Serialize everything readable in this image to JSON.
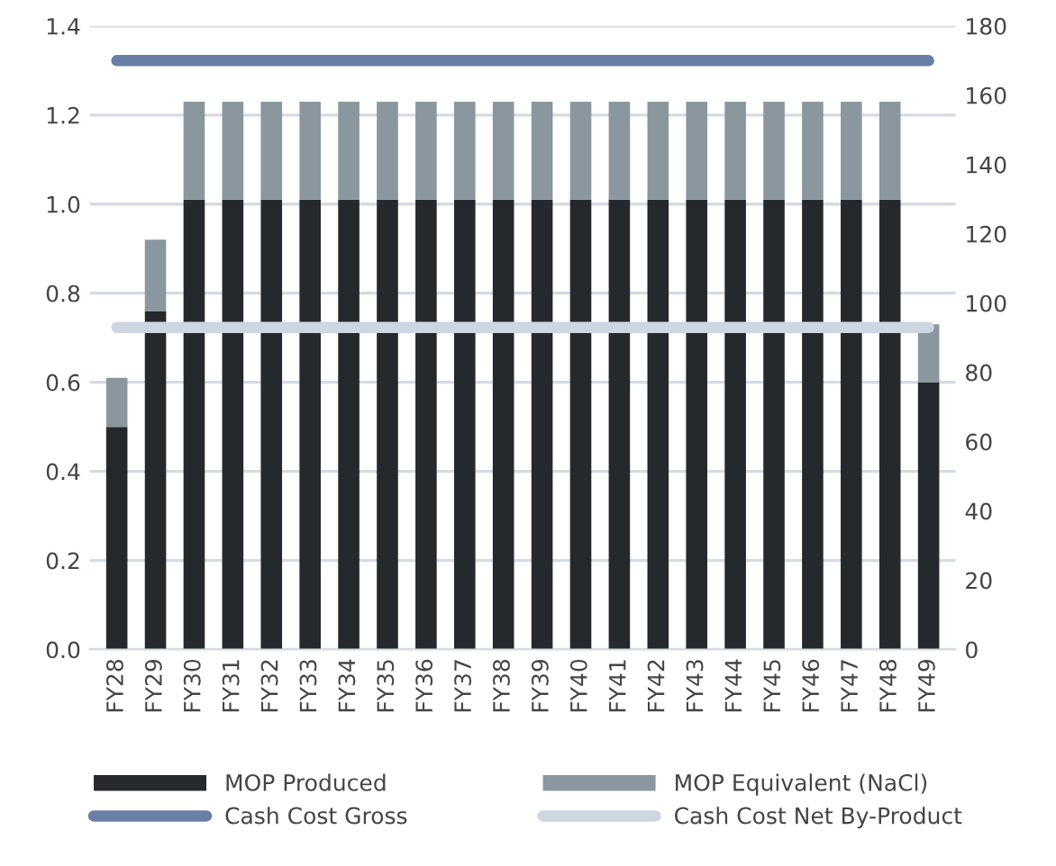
{
  "chart_data": {
    "type": "bar",
    "stacked": true,
    "categories": [
      "FY28",
      "FY29",
      "FY30",
      "FY31",
      "FY32",
      "FY33",
      "FY34",
      "FY35",
      "FY36",
      "FY37",
      "FY38",
      "FY39",
      "FY40",
      "FY41",
      "FY42",
      "FY43",
      "FY44",
      "FY45",
      "FY46",
      "FY47",
      "FY48",
      "FY49"
    ],
    "series": [
      {
        "name": "MOP Produced",
        "color": "#25292d",
        "values": [
          0.5,
          0.76,
          1.01,
          1.01,
          1.01,
          1.01,
          1.01,
          1.01,
          1.01,
          1.01,
          1.01,
          1.01,
          1.01,
          1.01,
          1.01,
          1.01,
          1.01,
          1.01,
          1.01,
          1.01,
          1.01,
          0.6
        ]
      },
      {
        "name": "MOP Equivalent (NaCl)",
        "color": "#8a979f",
        "values": [
          0.11,
          0.16,
          0.22,
          0.22,
          0.22,
          0.22,
          0.22,
          0.22,
          0.22,
          0.22,
          0.22,
          0.22,
          0.22,
          0.22,
          0.22,
          0.22,
          0.22,
          0.22,
          0.22,
          0.22,
          0.22,
          0.13
        ]
      },
      {
        "name": "Cash Cost Gross",
        "type": "line",
        "axis": "y2",
        "color": "#6a7fa6",
        "values": [
          170,
          170,
          170,
          170,
          170,
          170,
          170,
          170,
          170,
          170,
          170,
          170,
          170,
          170,
          170,
          170,
          170,
          170,
          170,
          170,
          170,
          170
        ]
      },
      {
        "name": "Cash Cost Net By-Product",
        "type": "line",
        "axis": "y2",
        "color": "#cfd6e2",
        "values": [
          93,
          93,
          93,
          93,
          93,
          93,
          93,
          93,
          93,
          93,
          93,
          93,
          93,
          93,
          93,
          93,
          93,
          93,
          93,
          93,
          93,
          93
        ]
      }
    ],
    "ylim": [
      0,
      1.4
    ],
    "yticks": [
      {
        "value": 0,
        "label": "0.0"
      },
      {
        "value": 0.2,
        "label": "0.2"
      },
      {
        "value": 0.4,
        "label": "0.4"
      },
      {
        "value": 0.6,
        "label": "0.6"
      },
      {
        "value": 0.8,
        "label": "0.8"
      },
      {
        "value": 1,
        "label": "1.0"
      },
      {
        "value": 1.2,
        "label": "1.2"
      },
      {
        "value": 1.4,
        "label": "1.4"
      }
    ],
    "y2lim": [
      0,
      180
    ],
    "y2ticks": [
      0,
      20,
      40,
      60,
      80,
      100,
      120,
      140,
      160,
      180
    ],
    "grid": "y",
    "legend": "bottom"
  }
}
